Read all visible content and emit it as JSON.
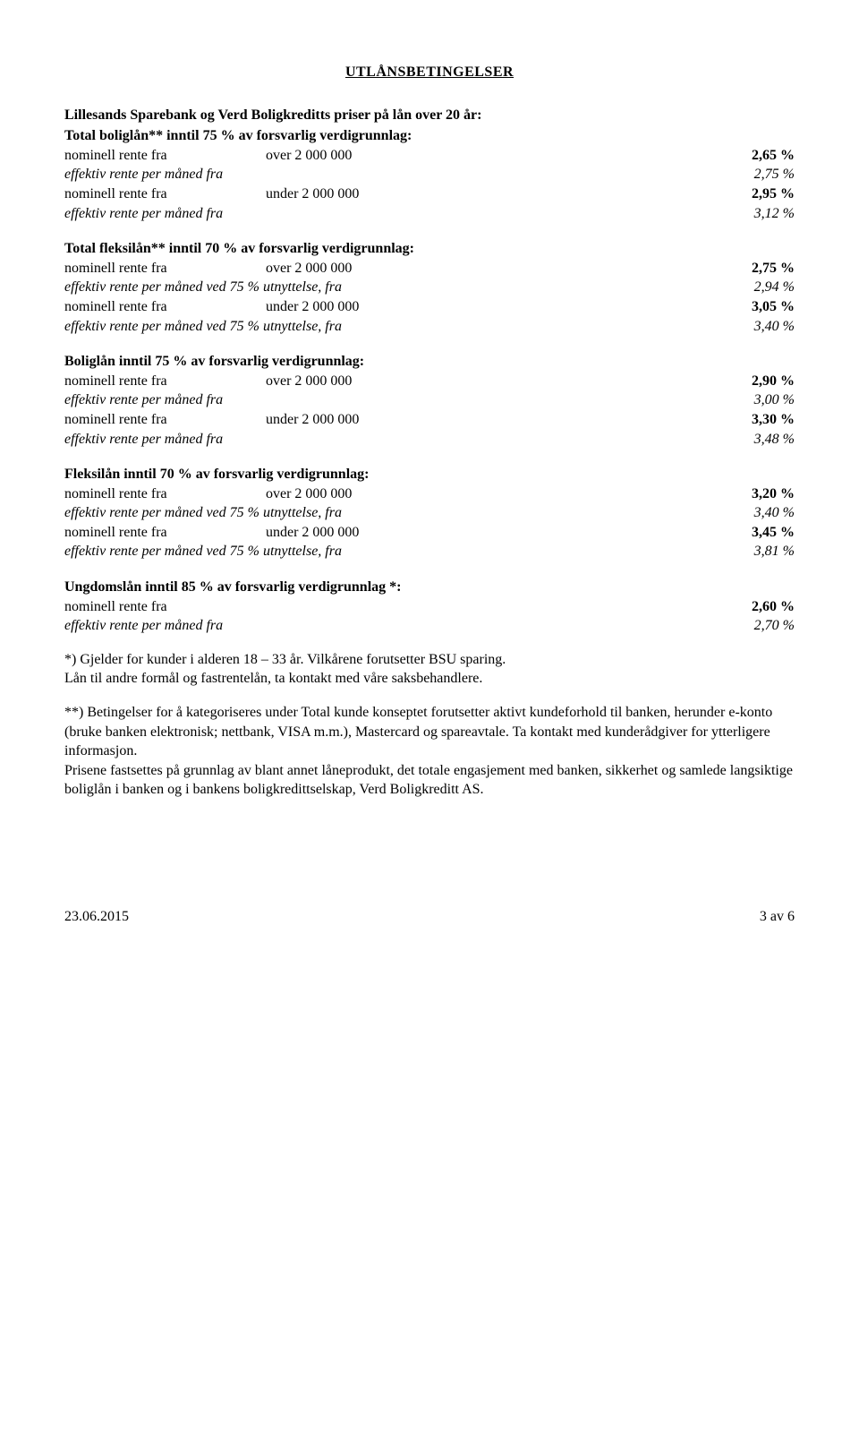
{
  "title": "UTLÅNSBETINGELSER",
  "sections": [
    {
      "heading": "Lillesands Sparebank og Verd Boligkreditts priser på lån over 20 år:",
      "subheading": "Total boliglån** inntil 75 % av forsvarlig verdigrunnlag:",
      "rows": [
        {
          "label": "nominell rente fra",
          "mid": "over 2 000 000",
          "right": "2,65 %",
          "italic": false,
          "bold": true
        },
        {
          "label": "effektiv rente per måned fra",
          "mid": "",
          "right": "2,75 %",
          "italic": true,
          "bold": false
        },
        {
          "label": "nominell rente fra",
          "mid": "under 2 000 000",
          "right": "2,95 %",
          "italic": false,
          "bold": true
        },
        {
          "label": "effektiv rente per måned fra",
          "mid": "",
          "right": "3,12 %",
          "italic": true,
          "bold": false
        }
      ]
    },
    {
      "heading": "Total fleksilån** inntil 70 % av forsvarlig verdigrunnlag:",
      "rows": [
        {
          "label": "nominell rente fra",
          "mid": "over 2 000 000",
          "right": "2,75 %",
          "italic": false,
          "bold": true
        },
        {
          "label": "effektiv rente per måned ved 75 % utnyttelse, fra",
          "mid": "",
          "right": "2,94 %",
          "italic": true,
          "bold": false
        },
        {
          "label": "nominell rente fra",
          "mid": "under 2 000 000",
          "right": "3,05 %",
          "italic": false,
          "bold": true
        },
        {
          "label": "effektiv rente per måned ved 75 % utnyttelse, fra",
          "mid": "",
          "right": "3,40 %",
          "italic": true,
          "bold": false
        }
      ]
    },
    {
      "heading": "Boliglån inntil 75 % av forsvarlig verdigrunnlag:",
      "rows": [
        {
          "label": "nominell rente fra",
          "mid": "over 2 000 000",
          "right": "2,90 %",
          "italic": false,
          "bold": true
        },
        {
          "label": "effektiv rente per måned fra",
          "mid": "",
          "right": "3,00 %",
          "italic": true,
          "bold": false
        },
        {
          "label": "nominell rente fra",
          "mid": "under 2 000 000",
          "right": "3,30 %",
          "italic": false,
          "bold": true
        },
        {
          "label": "effektiv rente per måned fra",
          "mid": "",
          "right": "3,48 %",
          "italic": true,
          "bold": false
        }
      ]
    },
    {
      "heading": "Fleksilån inntil 70 % av forsvarlig verdigrunnlag:",
      "rows": [
        {
          "label": "nominell rente fra",
          "mid": "over 2 000 000",
          "right": "3,20 %",
          "italic": false,
          "bold": true
        },
        {
          "label": "effektiv rente per måned ved 75 % utnyttelse, fra",
          "mid": "",
          "right": "3,40 %",
          "italic": true,
          "bold": false
        },
        {
          "label": "nominell rente fra",
          "mid": "under 2 000 000",
          "right": "3,45 %",
          "italic": false,
          "bold": true
        },
        {
          "label": "effektiv rente per måned ved 75 % utnyttelse, fra",
          "mid": "",
          "right": "3,81 %",
          "italic": true,
          "bold": false
        }
      ]
    },
    {
      "heading": "Ungdomslån inntil 85 % av forsvarlig verdigrunnlag *:",
      "rows": [
        {
          "label": "nominell rente fra",
          "mid": "",
          "right": "2,60 %",
          "italic": false,
          "bold": true
        },
        {
          "label": "effektiv rente per måned fra",
          "mid": "",
          "right": "2,70 %",
          "italic": true,
          "bold": false
        }
      ]
    }
  ],
  "notes": [
    "*) Gjelder for kunder i alderen 18 – 33 år. Vilkårene forutsetter BSU sparing.\nLån til andre formål og fastrentelån, ta kontakt med våre saksbehandlere.",
    "**) Betingelser for å kategoriseres under Total kunde konseptet forutsetter aktivt kundeforhold til banken, herunder e-konto (bruke banken elektronisk; nettbank, VISA m.m.), Mastercard og spareavtale.  Ta kontakt med kunderådgiver for ytterligere informasjon.",
    "Prisene fastsettes på grunnlag av blant annet låneprodukt, det totale engasjement med banken,  sikkerhet og samlede langsiktige boliglån i banken og i bankens boligkredittselskap, Verd Boligkreditt AS."
  ],
  "mid_col_width_long": "380px",
  "footer": {
    "left": "23.06.2015",
    "right": "3 av 6"
  }
}
